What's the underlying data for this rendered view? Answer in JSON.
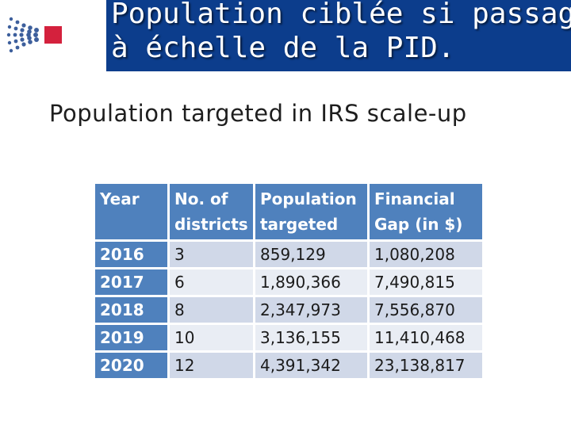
{
  "header": {
    "title_line1": "Population ciblée si passage",
    "title_line2": "à échelle de la PID.",
    "background_color": "#0c3d8c",
    "logo_icon": "dotted-burst-logo-icon"
  },
  "slide": {
    "subtitle": "Population targeted in IRS scale-up"
  },
  "table": {
    "columns": [
      {
        "line1": "Year",
        "line2": ""
      },
      {
        "line1": "No. of",
        "line2": "districts"
      },
      {
        "line1": "Population",
        "line2": "targeted"
      },
      {
        "line1": "Financial",
        "line2": "Gap (in $)"
      }
    ],
    "rows": [
      {
        "year": "2016",
        "districts": "3",
        "population": "859,129",
        "gap": "1,080,208"
      },
      {
        "year": "2017",
        "districts": "6",
        "population": "1,890,366",
        "gap": "7,490,815"
      },
      {
        "year": "2018",
        "districts": "8",
        "population": "2,347,973",
        "gap": "7,556,870"
      },
      {
        "year": "2019",
        "districts": "10",
        "population": "3,136,155",
        "gap": "11,410,468"
      },
      {
        "year": "2020",
        "districts": "12",
        "population": "4,391,342",
        "gap": "23,138,817"
      }
    ],
    "header_color": "#4f81bd",
    "row_color_odd": "#d0d8e8",
    "row_color_even": "#e9edf4"
  }
}
